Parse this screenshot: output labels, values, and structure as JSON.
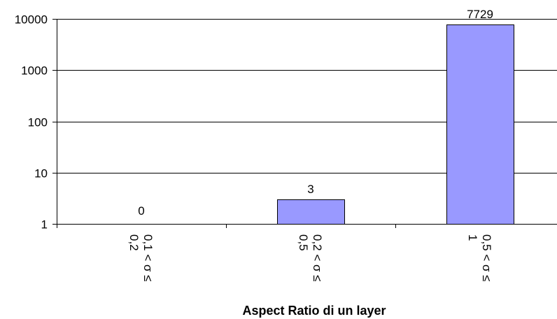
{
  "chart_data": {
    "type": "bar",
    "y_scale": "log",
    "ylim": [
      1,
      10000
    ],
    "y_ticks": [
      {
        "value": 1,
        "label": "1"
      },
      {
        "value": 10,
        "label": "10"
      },
      {
        "value": 100,
        "label": "100"
      },
      {
        "value": 1000,
        "label": "1000"
      },
      {
        "value": 10000,
        "label": "10000"
      }
    ],
    "grid": true,
    "categories": [
      [
        "0,1 < σ ≤",
        "0,2"
      ],
      [
        "0,2 < σ ≤",
        "0,5"
      ],
      [
        "0,5 < σ ≤",
        "1"
      ]
    ],
    "values": [
      0,
      3,
      7729
    ],
    "data_labels": [
      "0",
      "3",
      "7729"
    ],
    "xlabel": "Aspect Ratio di un layer",
    "ylabel": "",
    "title": "",
    "colors": {
      "bar_fill": "#9999ff",
      "bar_stroke": "#000000",
      "grid": "#000000",
      "axis": "#000000"
    }
  }
}
